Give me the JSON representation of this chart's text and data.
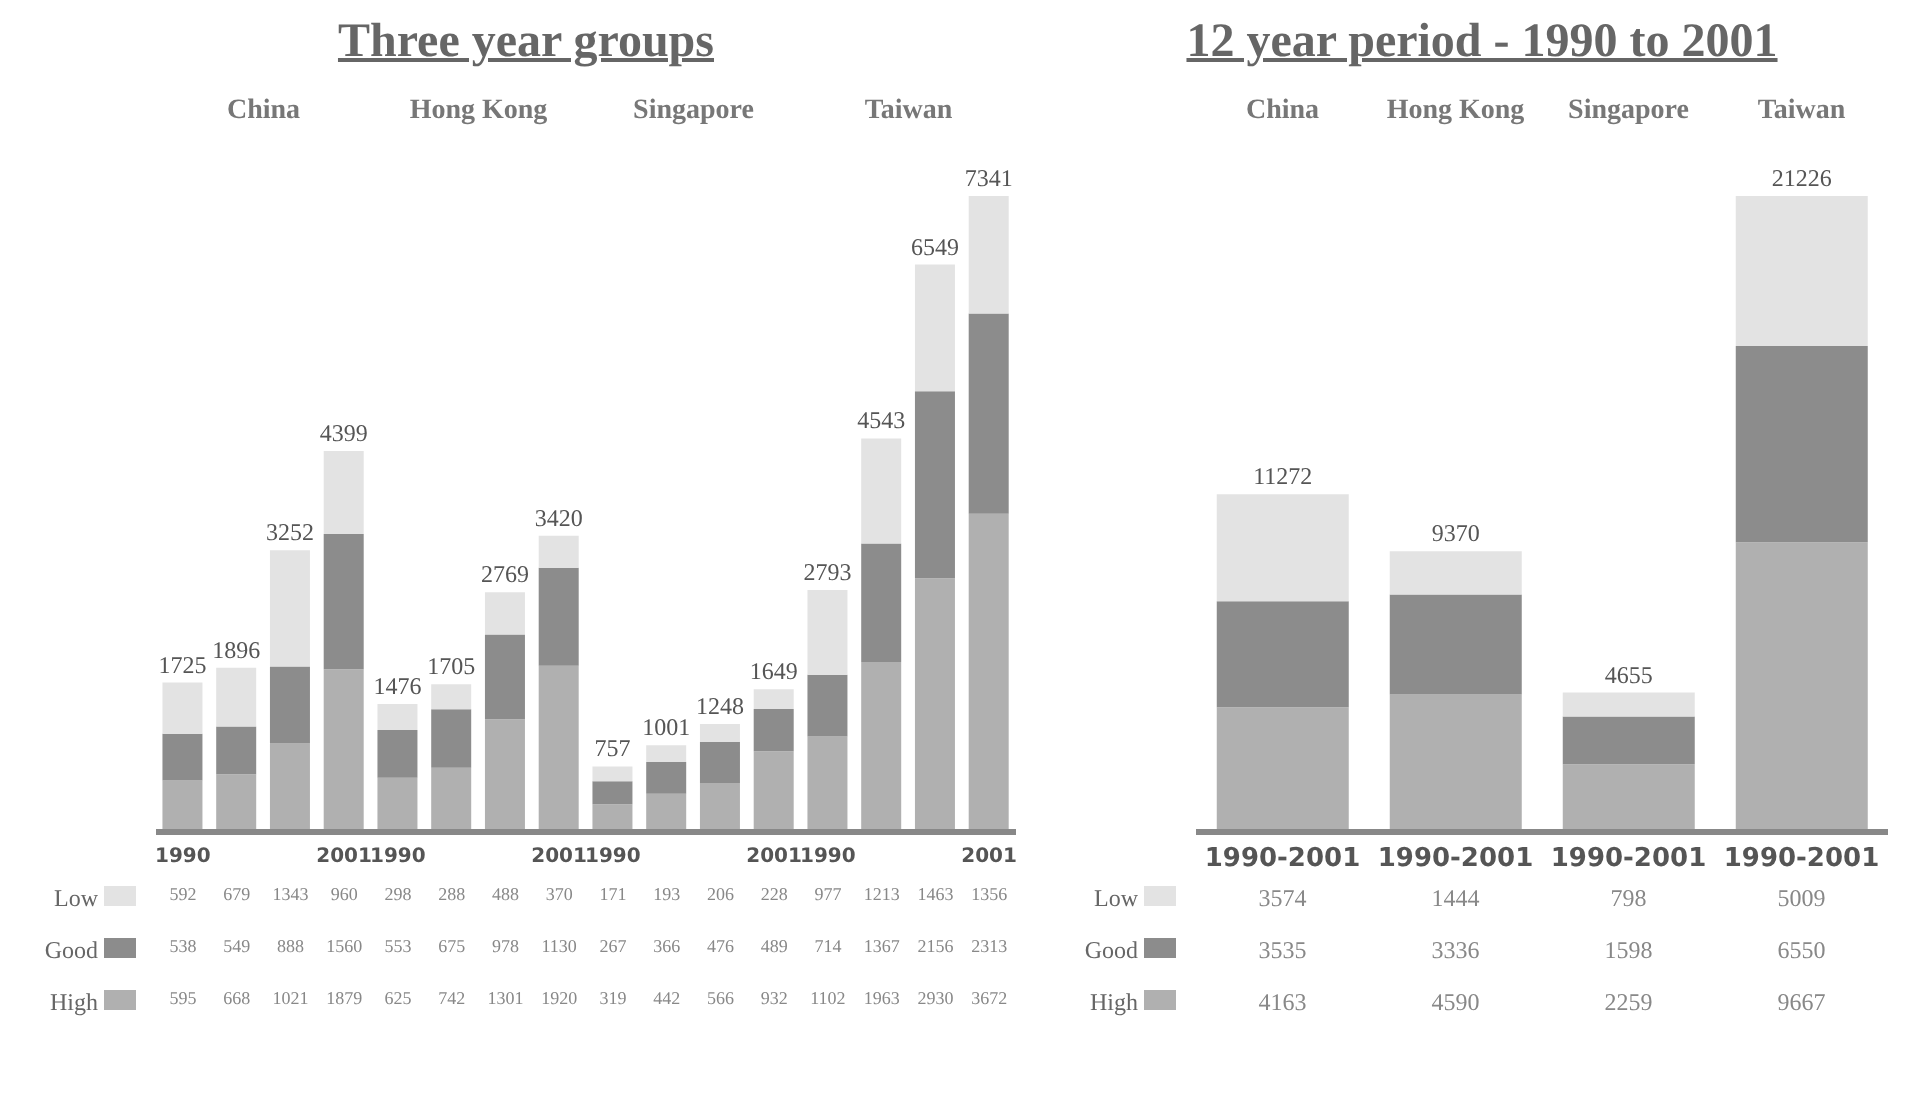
{
  "chart_data": [
    {
      "type": "bar",
      "title": "Three year groups",
      "stacked": true,
      "data_labels": true,
      "legend": "bottom left",
      "annotations": [
        "China",
        "Hong Kong",
        "Singapore",
        "Taiwan"
      ],
      "categories": [
        "1990",
        null,
        null,
        "2001",
        "1990",
        null,
        null,
        "2001",
        "1990",
        null,
        null,
        "2001",
        "1990",
        null,
        null,
        "2001"
      ],
      "series": [
        {
          "name": "High",
          "color": "#b0b0b0",
          "values": [
            595,
            668,
            1021,
            1879,
            625,
            742,
            1301,
            1920,
            319,
            442,
            566,
            932,
            1102,
            1963,
            2930,
            3672
          ]
        },
        {
          "name": "Good",
          "color": "#8c8c8c",
          "values": [
            538,
            549,
            888,
            1560,
            553,
            675,
            978,
            1130,
            267,
            366,
            476,
            489,
            714,
            1367,
            2156,
            2313
          ]
        },
        {
          "name": "Low",
          "color": "#e3e3e3",
          "values": [
            592,
            679,
            1343,
            960,
            298,
            288,
            488,
            370,
            171,
            193,
            206,
            228,
            977,
            1213,
            1463,
            1356
          ]
        }
      ],
      "totals": [
        "1725",
        "1896",
        "3252",
        "4399",
        "1476",
        "1705",
        "2769",
        "3420",
        "757",
        "1001",
        "1248",
        "1649",
        "2793",
        "4543",
        "6549",
        "7341"
      ]
    },
    {
      "type": "bar",
      "title": "12 year period - 1990 to 2001",
      "stacked": true,
      "data_labels": true,
      "legend": "bottom left",
      "annotations": [
        "China",
        "Hong Kong",
        "Singapore",
        "Taiwan"
      ],
      "categories": [
        "1990-2001",
        "1990-2001",
        "1990-2001",
        "1990-2001"
      ],
      "series": [
        {
          "name": "High",
          "color": "#b0b0b0",
          "values": [
            4163,
            4590,
            2259,
            9667
          ]
        },
        {
          "name": "Good",
          "color": "#8c8c8c",
          "values": [
            3535,
            3336,
            1598,
            6550
          ]
        },
        {
          "name": "Low",
          "color": "#e3e3e3",
          "values": [
            3574,
            1444,
            798,
            5009
          ]
        }
      ],
      "totals": [
        "11272",
        "9370",
        "4655",
        "21226"
      ]
    }
  ]
}
